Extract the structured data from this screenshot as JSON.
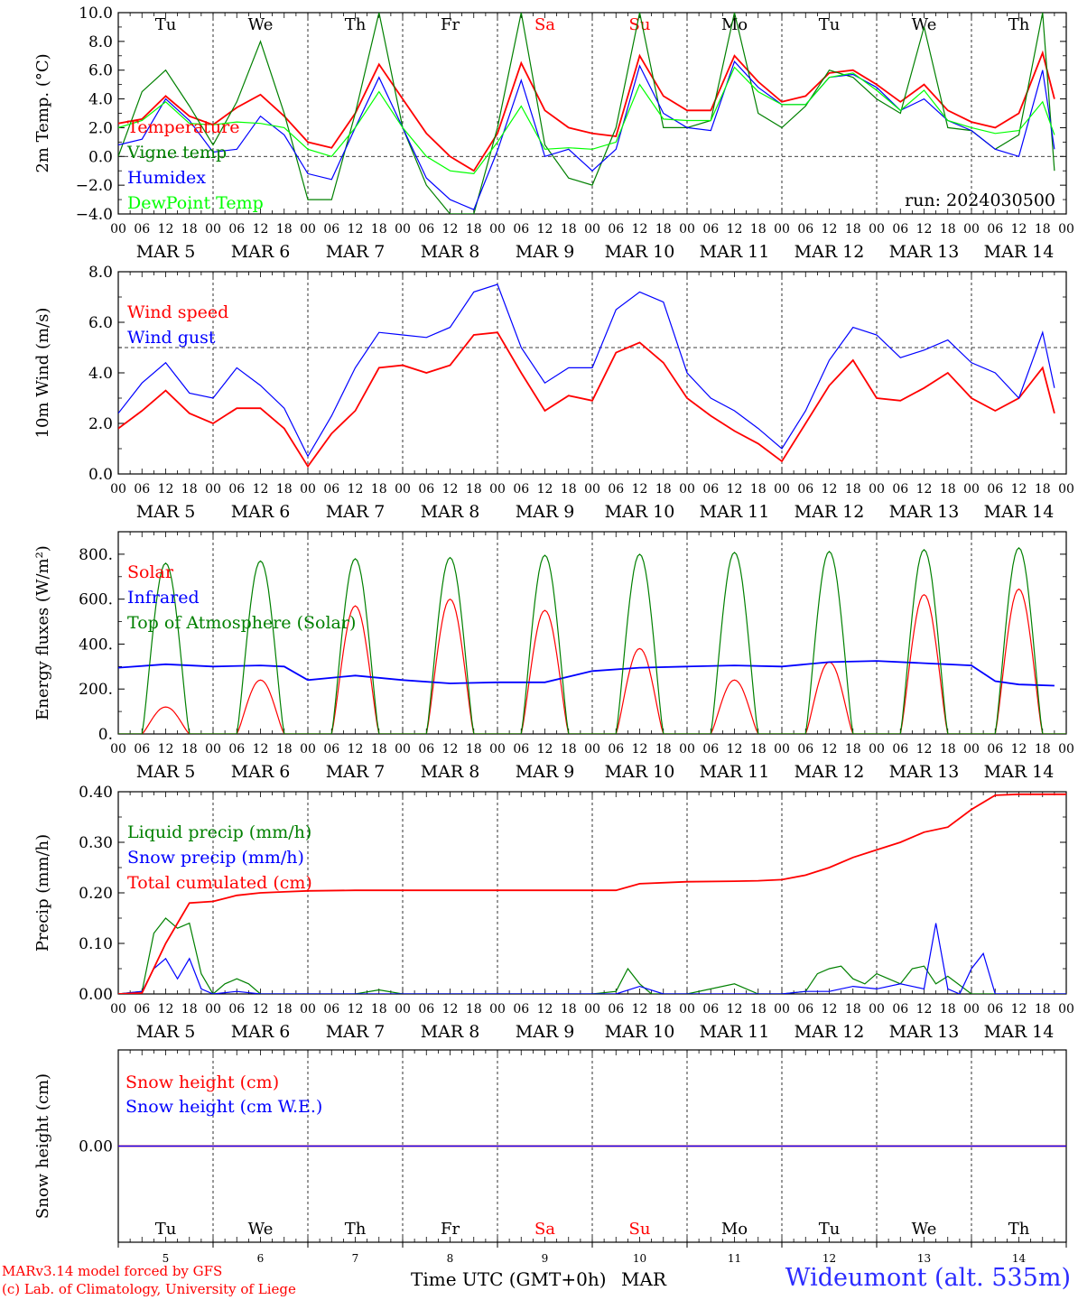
{
  "footer": {
    "model_line": "MARv3.14 model forced by GFS",
    "credit_line": "(c) Lab. of Climatology, University of Liege",
    "time_label": "Time UTC (GMT+0h)",
    "month_label": "MAR",
    "station": "Wideumont (alt. 535m)"
  },
  "colors": {
    "red": "#ff0000",
    "green": "#008000",
    "blue": "#0000ff",
    "lightgreen": "#00ff00",
    "black": "#000000"
  },
  "axis": {
    "hour_ticks": [
      "00",
      "06",
      "12",
      "18"
    ],
    "days": [
      {
        "month": "MAR",
        "day": "5",
        "dow": "Tu",
        "weekend": false
      },
      {
        "month": "MAR",
        "day": "6",
        "dow": "We",
        "weekend": false
      },
      {
        "month": "MAR",
        "day": "7",
        "dow": "Th",
        "weekend": false
      },
      {
        "month": "MAR",
        "day": "8",
        "dow": "Fr",
        "weekend": false
      },
      {
        "month": "MAR",
        "day": "9",
        "dow": "Sa",
        "weekend": true
      },
      {
        "month": "MAR",
        "day": "10",
        "dow": "Su",
        "weekend": true
      },
      {
        "month": "MAR",
        "day": "11",
        "dow": "Mo",
        "weekend": false
      },
      {
        "month": "MAR",
        "day": "12",
        "dow": "Tu",
        "weekend": false
      },
      {
        "month": "MAR",
        "day": "13",
        "dow": "We",
        "weekend": false
      },
      {
        "month": "MAR",
        "day": "14",
        "dow": "Th",
        "weekend": false
      }
    ]
  },
  "chart_data": [
    {
      "id": "temp",
      "type": "line",
      "ylabel": "2m Temp. (°C)",
      "ylim": [
        -4,
        10
      ],
      "yticks": [
        "10.0",
        "8.0",
        "6.0",
        "4.0",
        "2.0",
        "0.0",
        "−2.0",
        "−4.0"
      ],
      "ref_line": 0,
      "show_dow": true,
      "annotation": "run: 2024030500",
      "x_unit": "hours since 2024-03-05 00 UTC",
      "series": [
        {
          "name": "Temperature",
          "color": "#ff0000",
          "x": [
            0,
            6,
            12,
            18,
            24,
            30,
            36,
            42,
            48,
            54,
            60,
            66,
            72,
            78,
            84,
            90,
            96,
            102,
            108,
            114,
            120,
            126,
            132,
            138,
            144,
            150,
            156,
            162,
            168,
            174,
            180,
            186,
            192,
            198,
            204,
            210,
            216,
            222,
            228,
            234,
            237
          ],
          "y": [
            2.3,
            2.6,
            4.2,
            2.8,
            2.2,
            3.4,
            4.3,
            2.8,
            1.0,
            0.6,
            3.0,
            6.4,
            4.0,
            1.6,
            0.0,
            -1.0,
            1.6,
            6.5,
            3.2,
            2.0,
            1.6,
            1.4,
            7.0,
            4.2,
            3.2,
            3.2,
            7.0,
            5.2,
            3.8,
            4.2,
            5.8,
            6.0,
            5.0,
            3.8,
            5.0,
            3.2,
            2.4,
            2.0,
            3.0,
            7.2,
            4.0
          ]
        },
        {
          "name": "Vigne temp",
          "color": "#008000",
          "x": [
            0,
            6,
            12,
            18,
            24,
            30,
            36,
            42,
            48,
            54,
            60,
            66,
            72,
            78,
            84,
            90,
            96,
            102,
            108,
            114,
            120,
            126,
            132,
            138,
            144,
            150,
            156,
            162,
            168,
            174,
            180,
            186,
            192,
            198,
            204,
            210,
            216,
            222,
            228,
            234,
            237
          ],
          "y": [
            0.0,
            4.5,
            6.0,
            3.5,
            0.8,
            3.8,
            8.0,
            3.0,
            -3.0,
            -3.0,
            3.0,
            10.0,
            2.0,
            -2.0,
            -4.0,
            -4.0,
            2.0,
            10.0,
            0.8,
            -1.5,
            -2.0,
            2.0,
            10.0,
            2.0,
            2.0,
            2.5,
            10.0,
            3.0,
            2.0,
            3.5,
            6.0,
            5.5,
            4.0,
            3.0,
            9.0,
            2.0,
            1.8,
            0.5,
            1.5,
            10.0,
            -1.0
          ]
        },
        {
          "name": "Humidex",
          "color": "#0000ff",
          "x": [
            0,
            6,
            12,
            18,
            24,
            30,
            36,
            42,
            48,
            54,
            60,
            66,
            72,
            78,
            84,
            90,
            96,
            102,
            108,
            114,
            120,
            126,
            132,
            138,
            144,
            150,
            156,
            162,
            168,
            174,
            180,
            186,
            192,
            198,
            204,
            210,
            216,
            222,
            228,
            234,
            237
          ],
          "y": [
            0.8,
            1.2,
            4.0,
            2.5,
            0.3,
            0.5,
            2.8,
            1.5,
            -1.2,
            -1.6,
            2.0,
            5.5,
            2.0,
            -1.5,
            -3.0,
            -3.7,
            0.4,
            5.3,
            0.0,
            0.5,
            -1.0,
            0.5,
            6.3,
            3.0,
            2.0,
            1.8,
            6.6,
            4.8,
            3.6,
            3.6,
            5.5,
            5.7,
            4.8,
            3.2,
            4.0,
            2.5,
            1.8,
            0.5,
            0.0,
            6.0,
            0.5
          ]
        },
        {
          "name": "DewPoint Temp",
          "color": "#00ff00",
          "x": [
            0,
            6,
            12,
            18,
            24,
            30,
            36,
            42,
            48,
            54,
            60,
            66,
            72,
            78,
            84,
            90,
            96,
            102,
            108,
            114,
            120,
            126,
            132,
            138,
            144,
            150,
            156,
            162,
            168,
            174,
            180,
            186,
            192,
            198,
            204,
            210,
            216,
            222,
            228,
            234,
            237
          ],
          "y": [
            2.0,
            2.5,
            3.8,
            2.3,
            2.2,
            2.4,
            2.3,
            2.0,
            0.5,
            0.0,
            2.0,
            4.5,
            2.0,
            0.0,
            -1.0,
            -1.2,
            1.0,
            3.5,
            0.5,
            0.6,
            0.5,
            1.0,
            5.0,
            2.6,
            2.5,
            2.5,
            6.2,
            4.5,
            3.6,
            3.6,
            5.5,
            5.8,
            4.6,
            3.2,
            4.6,
            2.5,
            2.0,
            1.6,
            1.8,
            3.8,
            1.5
          ]
        }
      ]
    },
    {
      "id": "wind",
      "type": "line",
      "ylabel": "10m Wind (m/s)",
      "ylim": [
        0,
        8
      ],
      "yticks": [
        "8.0",
        "6.0",
        "4.0",
        "2.0",
        "0.0"
      ],
      "ref_line": 5,
      "show_dow": false,
      "x_unit": "hours since 2024-03-05 00 UTC",
      "series": [
        {
          "name": "Wind speed",
          "color": "#ff0000",
          "x": [
            0,
            6,
            12,
            18,
            24,
            30,
            36,
            42,
            48,
            54,
            60,
            66,
            72,
            78,
            84,
            90,
            96,
            102,
            108,
            114,
            120,
            126,
            132,
            138,
            144,
            150,
            156,
            162,
            168,
            174,
            180,
            186,
            192,
            198,
            204,
            210,
            216,
            222,
            228,
            234,
            237
          ],
          "y": [
            1.8,
            2.5,
            3.3,
            2.4,
            2.0,
            2.6,
            2.6,
            1.8,
            0.3,
            1.6,
            2.5,
            4.2,
            4.3,
            4.0,
            4.3,
            5.5,
            5.6,
            4.0,
            2.5,
            3.1,
            2.9,
            4.8,
            5.2,
            4.4,
            3.0,
            2.3,
            1.7,
            1.2,
            0.5,
            2.0,
            3.5,
            4.5,
            3.0,
            2.9,
            3.4,
            4.0,
            3.0,
            2.5,
            3.0,
            4.2,
            2.4
          ]
        },
        {
          "name": "Wind gust",
          "color": "#0000ff",
          "x": [
            0,
            6,
            12,
            18,
            24,
            30,
            36,
            42,
            48,
            54,
            60,
            66,
            72,
            78,
            84,
            90,
            96,
            102,
            108,
            114,
            120,
            126,
            132,
            138,
            144,
            150,
            156,
            162,
            168,
            174,
            180,
            186,
            192,
            198,
            204,
            210,
            216,
            222,
            228,
            234,
            237
          ],
          "y": [
            2.4,
            3.6,
            4.4,
            3.2,
            3.0,
            4.2,
            3.5,
            2.6,
            0.7,
            2.3,
            4.2,
            5.6,
            5.5,
            5.4,
            5.8,
            7.2,
            7.5,
            5.0,
            3.6,
            4.2,
            4.2,
            6.5,
            7.2,
            6.8,
            4.0,
            3.0,
            2.5,
            1.8,
            1.0,
            2.5,
            4.5,
            5.8,
            5.5,
            4.6,
            4.9,
            5.3,
            4.4,
            4.0,
            3.0,
            5.6,
            3.4
          ]
        }
      ]
    },
    {
      "id": "energy",
      "type": "line",
      "ylabel": "Energy fluxes (W/m²)",
      "ylim": [
        0,
        900
      ],
      "yticks": [
        "800.",
        "600.",
        "400.",
        "200.",
        "0."
      ],
      "ref_line": null,
      "show_dow": false,
      "x_unit": "hours since 2024-03-05 00 UTC",
      "series": [
        {
          "name": "Solar",
          "kind": "diurnal",
          "color": "#ff0000",
          "peaks": [
            120,
            240,
            570,
            600,
            550,
            380,
            240,
            320,
            620,
            645
          ]
        },
        {
          "name": "Infrared",
          "color": "#0000ff",
          "x": [
            0,
            12,
            24,
            36,
            42,
            48,
            60,
            72,
            84,
            96,
            108,
            120,
            132,
            144,
            156,
            168,
            180,
            192,
            204,
            216,
            222,
            228,
            237
          ],
          "y": [
            295,
            310,
            300,
            305,
            300,
            240,
            260,
            240,
            225,
            230,
            230,
            280,
            295,
            300,
            305,
            300,
            320,
            325,
            315,
            305,
            235,
            220,
            215
          ]
        },
        {
          "name": "Top of Atmosphere (Solar)",
          "kind": "diurnal",
          "color": "#008000",
          "peaks": [
            760,
            770,
            780,
            785,
            795,
            800,
            808,
            812,
            820,
            828
          ]
        }
      ]
    },
    {
      "id": "precip",
      "type": "line",
      "ylabel": "Precip (mm/h)",
      "ylim": [
        0,
        0.4
      ],
      "yticks": [
        "0.40",
        "0.30",
        "0.20",
        "0.10",
        "0.00"
      ],
      "ref_line": null,
      "show_dow": false,
      "x_unit": "hours since 2024-03-05 00 UTC",
      "series": [
        {
          "name": "Liquid precip (mm/h)",
          "color": "#008000",
          "x": [
            0,
            6,
            9,
            12,
            15,
            18,
            21,
            24,
            27,
            30,
            33,
            36,
            48,
            60,
            66,
            72,
            96,
            120,
            126,
            129,
            132,
            135,
            144,
            156,
            162,
            168,
            174,
            177,
            180,
            183,
            186,
            189,
            192,
            195,
            198,
            201,
            204,
            207,
            210,
            216,
            240
          ],
          "y": [
            0,
            0.005,
            0.12,
            0.15,
            0.13,
            0.14,
            0.04,
            0,
            0.02,
            0.03,
            0.02,
            0,
            0,
            0,
            0.008,
            0,
            0,
            0,
            0.005,
            0.05,
            0.02,
            0,
            0,
            0.02,
            0,
            0,
            0.005,
            0.04,
            0.05,
            0.055,
            0.03,
            0.02,
            0.04,
            0.03,
            0.02,
            0.05,
            0.055,
            0.02,
            0.035,
            0,
            0
          ]
        },
        {
          "name": "Snow precip (mm/h)",
          "color": "#0000ff",
          "x": [
            0,
            6,
            9,
            12,
            15,
            18,
            21,
            24,
            30,
            36,
            48,
            126,
            132,
            138,
            168,
            174,
            180,
            186,
            192,
            198,
            201,
            204,
            207,
            210,
            213,
            216,
            219,
            222,
            225,
            240
          ],
          "y": [
            0,
            0.005,
            0.05,
            0.07,
            0.03,
            0.07,
            0.01,
            0,
            0.005,
            0,
            0,
            0,
            0.015,
            0,
            0,
            0.005,
            0.005,
            0.015,
            0.01,
            0.02,
            0.015,
            0.01,
            0.14,
            0.01,
            0,
            0.05,
            0.08,
            0,
            0,
            0
          ]
        },
        {
          "name": "Total cumulated (cm)",
          "color": "#ff0000",
          "x": [
            0,
            6,
            12,
            18,
            24,
            30,
            36,
            42,
            48,
            60,
            72,
            96,
            108,
            126,
            132,
            144,
            156,
            162,
            168,
            174,
            180,
            186,
            192,
            198,
            204,
            210,
            216,
            222,
            228,
            240
          ],
          "y": [
            0,
            0.002,
            0.1,
            0.18,
            0.183,
            0.195,
            0.2,
            0.202,
            0.204,
            0.205,
            0.205,
            0.205,
            0.205,
            0.205,
            0.218,
            0.222,
            0.223,
            0.224,
            0.226,
            0.235,
            0.25,
            0.27,
            0.285,
            0.3,
            0.32,
            0.33,
            0.365,
            0.393,
            0.395,
            0.395
          ]
        }
      ]
    },
    {
      "id": "snow",
      "type": "line",
      "ylabel": "Snow height (cm)",
      "ylim": [
        -1,
        1
      ],
      "yticks": [
        "0.00"
      ],
      "ref_line": null,
      "show_dow": true,
      "x_unit": "hours since 2024-03-05 00 UTC",
      "series": [
        {
          "name": "Snow height (cm)",
          "color": "#ff0000",
          "x": [
            0,
            240
          ],
          "y": [
            0,
            0
          ]
        },
        {
          "name": "Snow height (cm W.E.)",
          "color": "#0000ff",
          "x": [
            0,
            240
          ],
          "y": [
            0,
            0
          ]
        }
      ]
    }
  ]
}
